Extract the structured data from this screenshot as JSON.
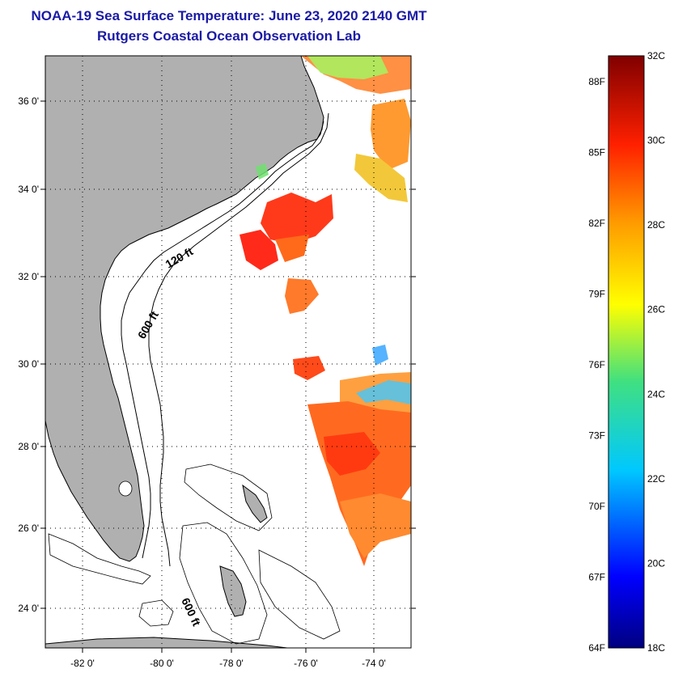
{
  "header": {
    "title": "NOAA-19 Sea Surface Temperature:  June 23, 2020 2140 GMT",
    "subtitle": "Rutgers Coastal Ocean Observation Lab"
  },
  "map": {
    "lat_labels": [
      "36 0'",
      "34 0'",
      "32 0'",
      "30 0'",
      "28 0'",
      "26 0'",
      "24 0'"
    ],
    "lon_labels": [
      "-82 0'",
      "-80 0'",
      "-78 0'",
      "-76 0'",
      "-74 0'"
    ],
    "contour_labels": [
      "120 ft",
      "600 ft",
      "600 ft"
    ],
    "land_color": "#b0b0b0"
  },
  "colorbar": {
    "celsius_labels": [
      "32C",
      "30C",
      "28C",
      "26C",
      "24C",
      "22C",
      "20C",
      "18C"
    ],
    "fahrenheit_labels": [
      "88F",
      "85F",
      "82F",
      "79F",
      "76F",
      "73F",
      "70F",
      "67F",
      "64F"
    ],
    "range_c": [
      18,
      32
    ],
    "range_f": [
      64,
      88
    ]
  }
}
